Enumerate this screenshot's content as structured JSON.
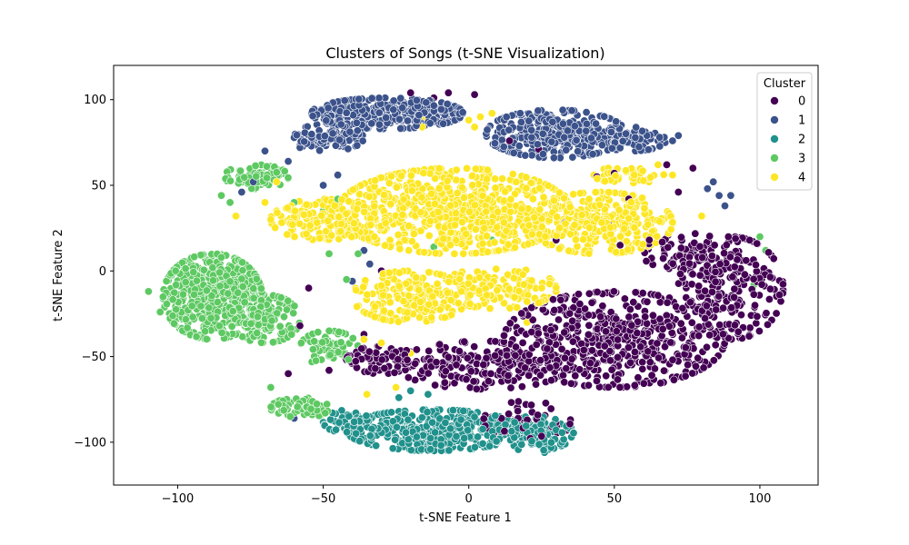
{
  "chart_data": {
    "type": "scatter",
    "title": "Clusters of Songs (t-SNE Visualization)",
    "xlabel": "t-SNE Feature 1",
    "ylabel": "t-SNE Feature 2",
    "xlim": [
      -122,
      120
    ],
    "ylim": [
      -125,
      120
    ],
    "xticks": [
      -100,
      -50,
      0,
      50,
      100
    ],
    "yticks": [
      -100,
      -50,
      0,
      50,
      100
    ],
    "xtick_labels": [
      "−100",
      "−50",
      "0",
      "50",
      "100"
    ],
    "ytick_labels": [
      "−100",
      "−50",
      "0",
      "50",
      "100"
    ],
    "grid": false,
    "legend": {
      "title": "Cluster",
      "placement": "top-right"
    },
    "series": [
      {
        "name": "0",
        "color": "#440154",
        "regions": [
          {
            "cx": 50,
            "cy": -40,
            "rx": 38,
            "ry": 28,
            "n": 520
          },
          {
            "cx": 90,
            "cy": -10,
            "rx": 18,
            "ry": 30,
            "n": 220
          },
          {
            "cx": 5,
            "cy": -55,
            "rx": 30,
            "ry": 14,
            "n": 200
          },
          {
            "cx": -30,
            "cy": -52,
            "rx": 12,
            "ry": 8,
            "n": 60
          },
          {
            "cx": 75,
            "cy": 10,
            "rx": 15,
            "ry": 12,
            "n": 70
          },
          {
            "cx": 20,
            "cy": -88,
            "rx": 15,
            "ry": 12,
            "n": 50
          }
        ],
        "scatter": [
          [
            -7,
            104
          ],
          [
            -20,
            104
          ],
          [
            -12,
            101
          ],
          [
            2,
            103
          ],
          [
            14,
            76
          ],
          [
            24,
            71
          ],
          [
            26,
            78
          ],
          [
            44,
            55
          ],
          [
            50,
            57
          ],
          [
            68,
            62
          ],
          [
            77,
            60
          ],
          [
            55,
            42
          ],
          [
            72,
            46
          ],
          [
            48,
            27
          ],
          [
            33,
            28
          ],
          [
            62,
            18
          ],
          [
            52,
            15
          ],
          [
            43,
            18
          ],
          [
            30,
            18
          ],
          [
            -30,
            0
          ],
          [
            -55,
            -10
          ],
          [
            -58,
            -32
          ],
          [
            -36,
            -37
          ],
          [
            -62,
            -60
          ],
          [
            -48,
            -58
          ],
          [
            -40,
            -95
          ],
          [
            10,
            78
          ],
          [
            62,
            54
          ]
        ]
      },
      {
        "name": "1",
        "color": "#3b528b",
        "regions": [
          {
            "cx": -28,
            "cy": 92,
            "rx": 26,
            "ry": 9,
            "n": 320
          },
          {
            "cx": 30,
            "cy": 80,
            "rx": 24,
            "ry": 14,
            "n": 330
          },
          {
            "cx": -48,
            "cy": 78,
            "rx": 12,
            "ry": 8,
            "n": 90
          },
          {
            "cx": 56,
            "cy": 77,
            "rx": 12,
            "ry": 7,
            "n": 70
          }
        ],
        "scatter": [
          [
            -70,
            70
          ],
          [
            -74,
            52
          ],
          [
            -78,
            46
          ],
          [
            -62,
            64
          ],
          [
            -58,
            72
          ],
          [
            84,
            52
          ],
          [
            86,
            44
          ],
          [
            88,
            38
          ],
          [
            82,
            48
          ],
          [
            90,
            44
          ],
          [
            -36,
            12
          ],
          [
            -34,
            4
          ],
          [
            -60,
            -86
          ],
          [
            -40,
            -6
          ],
          [
            -50,
            50
          ],
          [
            -45,
            56
          ],
          [
            70,
            76
          ],
          [
            72,
            79
          ]
        ]
      },
      {
        "name": "2",
        "color": "#21918c",
        "regions": [
          {
            "cx": -12,
            "cy": -93,
            "rx": 30,
            "ry": 12,
            "n": 420
          },
          {
            "cx": 22,
            "cy": -95,
            "rx": 14,
            "ry": 10,
            "n": 110
          },
          {
            "cx": -40,
            "cy": -88,
            "rx": 10,
            "ry": 7,
            "n": 60
          }
        ],
        "scatter": [
          [
            32,
            -100
          ],
          [
            26,
            -106
          ],
          [
            -20,
            -70
          ],
          [
            -24,
            -74
          ],
          [
            -14,
            -72
          ]
        ]
      },
      {
        "name": "3",
        "color": "#5ec962",
        "regions": [
          {
            "cx": -88,
            "cy": -15,
            "rx": 17,
            "ry": 25,
            "n": 520
          },
          {
            "cx": -70,
            "cy": -28,
            "rx": 12,
            "ry": 14,
            "n": 140
          },
          {
            "cx": -73,
            "cy": 55,
            "rx": 11,
            "ry": 7,
            "n": 80
          },
          {
            "cx": -58,
            "cy": -80,
            "rx": 10,
            "ry": 6,
            "n": 60
          },
          {
            "cx": -48,
            "cy": -45,
            "rx": 10,
            "ry": 10,
            "n": 60
          }
        ],
        "scatter": [
          [
            -110,
            -12
          ],
          [
            -104,
            -18
          ],
          [
            -106,
            -24
          ],
          [
            -100,
            -22
          ],
          [
            -68,
            -68
          ],
          [
            -56,
            -75
          ],
          [
            100,
            20
          ],
          [
            98,
            -8
          ],
          [
            102,
            12
          ],
          [
            -85,
            44
          ],
          [
            -82,
            40
          ],
          [
            -60,
            40
          ],
          [
            -50,
            35
          ],
          [
            -45,
            42
          ],
          [
            -40,
            30
          ],
          [
            -35,
            25
          ],
          [
            -55,
            20
          ],
          [
            -48,
            10
          ],
          [
            8,
            18
          ],
          [
            -12,
            14
          ],
          [
            -30,
            -20
          ],
          [
            -42,
            -5
          ],
          [
            -38,
            10
          ]
        ]
      },
      {
        "name": "4",
        "color": "#fde725",
        "regions": [
          {
            "cx": -5,
            "cy": 35,
            "rx": 40,
            "ry": 25,
            "n": 700
          },
          {
            "cx": 45,
            "cy": 28,
            "rx": 25,
            "ry": 18,
            "n": 300
          },
          {
            "cx": -20,
            "cy": -15,
            "rx": 20,
            "ry": 15,
            "n": 200
          },
          {
            "cx": -50,
            "cy": 30,
            "rx": 18,
            "ry": 12,
            "n": 150
          },
          {
            "cx": 10,
            "cy": -10,
            "rx": 20,
            "ry": 12,
            "n": 140
          },
          {
            "cx": 55,
            "cy": 56,
            "rx": 12,
            "ry": 5,
            "n": 50
          }
        ],
        "scatter": [
          [
            -15,
            90
          ],
          [
            -16,
            84
          ],
          [
            0,
            88
          ],
          [
            2,
            84
          ],
          [
            4,
            90
          ],
          [
            8,
            92
          ],
          [
            -30,
            -42
          ],
          [
            -36,
            -40
          ],
          [
            -20,
            -48
          ],
          [
            20,
            -30
          ],
          [
            25,
            -18
          ],
          [
            30,
            -12
          ],
          [
            65,
            62
          ],
          [
            70,
            56
          ],
          [
            80,
            32
          ],
          [
            -66,
            52
          ],
          [
            -80,
            32
          ],
          [
            -70,
            40
          ],
          [
            -35,
            -72
          ],
          [
            -25,
            -68
          ],
          [
            -8,
            -65
          ]
        ]
      }
    ]
  }
}
